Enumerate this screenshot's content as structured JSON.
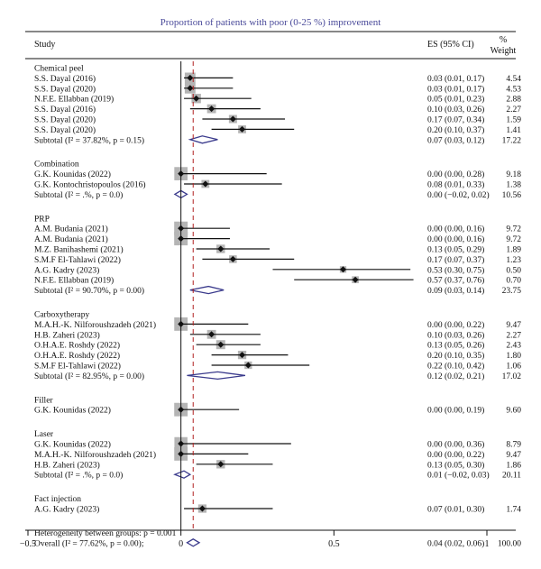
{
  "chart_data": {
    "type": "forest",
    "title": "Proportion of patients with poor (0-25 %) improvement",
    "columns": {
      "study": "Study",
      "es": "ES (95% CI)",
      "weight_line1": "%",
      "weight_line2": "Weight"
    },
    "xlim": [
      -0.5,
      1
    ],
    "xticks": [
      -0.5,
      0,
      0.5,
      1
    ],
    "xtick_labels": [
      "−0.5",
      "0",
      "0.5",
      "1"
    ],
    "reference_line": 0.04,
    "groups": [
      {
        "name": "Chemical peel",
        "studies": [
          {
            "label": "S.S. Dayal (2016)",
            "es": 0.03,
            "lo": 0.01,
            "hi": 0.17,
            "es_text": "0.03 (0.01, 0.17)",
            "weight": "4.54"
          },
          {
            "label": "S.S. Dayal (2020)",
            "es": 0.03,
            "lo": 0.01,
            "hi": 0.17,
            "es_text": "0.03 (0.01, 0.17)",
            "weight": "4.53"
          },
          {
            "label": "N.F.E. Ellabban (2019)",
            "es": 0.05,
            "lo": 0.01,
            "hi": 0.23,
            "es_text": "0.05 (0.01, 0.23)",
            "weight": "2.88"
          },
          {
            "label": "S.S. Dayal (2016)",
            "es": 0.1,
            "lo": 0.03,
            "hi": 0.26,
            "es_text": "0.10 (0.03, 0.26)",
            "weight": "2.27"
          },
          {
            "label": "S.S. Dayal (2020)",
            "es": 0.17,
            "lo": 0.07,
            "hi": 0.34,
            "es_text": "0.17 (0.07, 0.34)",
            "weight": "1.59"
          },
          {
            "label": "S.S. Dayal (2020)",
            "es": 0.2,
            "lo": 0.1,
            "hi": 0.37,
            "es_text": "0.20 (0.10, 0.37)",
            "weight": "1.41"
          }
        ],
        "subtotal": {
          "label": "Subtotal (I² = 37.82%, p = 0.15)",
          "es": 0.07,
          "lo": 0.03,
          "hi": 0.12,
          "es_text": "0.07 (0.03, 0.12)",
          "weight": "17.22"
        }
      },
      {
        "name": "Combination",
        "studies": [
          {
            "label": "G.K. Kounidas (2022)",
            "es": 0.0,
            "lo": 0.0,
            "hi": 0.28,
            "es_text": "0.00 (0.00, 0.28)",
            "weight": "9.18"
          },
          {
            "label": "G.K. Kontochristopoulos (2016)",
            "es": 0.08,
            "lo": 0.01,
            "hi": 0.33,
            "es_text": "0.08 (0.01, 0.33)",
            "weight": "1.38"
          }
        ],
        "subtotal": {
          "label": "Subtotal (I² = .%, p = 0.0)",
          "es": 0.0,
          "lo": -0.02,
          "hi": 0.02,
          "es_text": "0.00 (−0.02, 0.02)",
          "weight": "10.56"
        }
      },
      {
        "name": "PRP",
        "studies": [
          {
            "label": "A.M. Budania (2021)",
            "es": 0.0,
            "lo": 0.0,
            "hi": 0.16,
            "es_text": "0.00 (0.00, 0.16)",
            "weight": "9.72"
          },
          {
            "label": "A.M. Budania (2021)",
            "es": 0.0,
            "lo": 0.0,
            "hi": 0.16,
            "es_text": "0.00 (0.00, 0.16)",
            "weight": "9.72"
          },
          {
            "label": "M.Z. Banihashemi (2021)",
            "es": 0.13,
            "lo": 0.05,
            "hi": 0.29,
            "es_text": "0.13 (0.05, 0.29)",
            "weight": "1.89"
          },
          {
            "label": "S.M.F El-Tahlawi (2022)",
            "es": 0.17,
            "lo": 0.07,
            "hi": 0.37,
            "es_text": "0.17 (0.07, 0.37)",
            "weight": "1.23"
          },
          {
            "label": "A.G. Kadry (2023)",
            "es": 0.53,
            "lo": 0.3,
            "hi": 0.75,
            "es_text": "0.53 (0.30, 0.75)",
            "weight": "0.50"
          },
          {
            "label": "N.F.E. Ellabban (2019)",
            "es": 0.57,
            "lo": 0.37,
            "hi": 0.76,
            "es_text": "0.57 (0.37, 0.76)",
            "weight": "0.70"
          }
        ],
        "subtotal": {
          "label": "Subtotal (I² = 90.70%, p = 0.00)",
          "es": 0.09,
          "lo": 0.03,
          "hi": 0.14,
          "es_text": "0.09 (0.03, 0.14)",
          "weight": "23.75"
        }
      },
      {
        "name": "Carboxytherapy",
        "studies": [
          {
            "label": "M.A.H.-K. Nilforoushzadeh (2021)",
            "es": 0.0,
            "lo": 0.0,
            "hi": 0.22,
            "es_text": "0.00 (0.00, 0.22)",
            "weight": "9.47"
          },
          {
            "label": "H.B. Zaheri (2023)",
            "es": 0.1,
            "lo": 0.03,
            "hi": 0.26,
            "es_text": "0.10 (0.03, 0.26)",
            "weight": "2.27"
          },
          {
            "label": "O.H.A.E. Roshdy (2022)",
            "es": 0.13,
            "lo": 0.05,
            "hi": 0.26,
            "es_text": "0.13 (0.05, 0.26)",
            "weight": "2.43"
          },
          {
            "label": "O.H.A.E. Roshdy (2022)",
            "es": 0.2,
            "lo": 0.1,
            "hi": 0.35,
            "es_text": "0.20 (0.10, 0.35)",
            "weight": "1.80"
          },
          {
            "label": "S.M.F El-Tahlawi (2022)",
            "es": 0.22,
            "lo": 0.1,
            "hi": 0.42,
            "es_text": "0.22 (0.10, 0.42)",
            "weight": "1.06"
          }
        ],
        "subtotal": {
          "label": "Subtotal (I² = 82.95%, p = 0.00)",
          "es": 0.12,
          "lo": 0.02,
          "hi": 0.21,
          "es_text": "0.12 (0.02, 0.21)",
          "weight": "17.02"
        }
      },
      {
        "name": "Filler",
        "studies": [
          {
            "label": "G.K. Kounidas (2022)",
            "es": 0.0,
            "lo": 0.0,
            "hi": 0.19,
            "es_text": "0.00 (0.00, 0.19)",
            "weight": "9.60"
          }
        ],
        "subtotal": null
      },
      {
        "name": "Laser",
        "studies": [
          {
            "label": "G.K. Kounidas (2022)",
            "es": 0.0,
            "lo": 0.0,
            "hi": 0.36,
            "es_text": "0.00 (0.00, 0.36)",
            "weight": "8.79"
          },
          {
            "label": "M.A.H.-K. Nilforoushzadeh (2021)",
            "es": 0.0,
            "lo": 0.0,
            "hi": 0.22,
            "es_text": "0.00 (0.00, 0.22)",
            "weight": "9.47"
          },
          {
            "label": "H.B. Zaheri (2023)",
            "es": 0.13,
            "lo": 0.05,
            "hi": 0.3,
            "es_text": "0.13 (0.05, 0.30)",
            "weight": "1.86"
          }
        ],
        "subtotal": {
          "label": "Subtotal (I² = .%, p = 0.0)",
          "es": 0.01,
          "lo": -0.02,
          "hi": 0.03,
          "es_text": "0.01 (−0.02, 0.03)",
          "weight": "20.11"
        }
      },
      {
        "name": "Fact injection",
        "studies": [
          {
            "label": "A.G. Kadry (2023)",
            "es": 0.07,
            "lo": 0.01,
            "hi": 0.3,
            "es_text": "0.07 (0.01, 0.30)",
            "weight": "1.74"
          }
        ],
        "subtotal": null
      }
    ],
    "heterogeneity_text": "Heterogeneity between groups: p = 0.001",
    "overall": {
      "label": "Overall (I² = 77.62%, p = 0.00);",
      "es": 0.04,
      "lo": 0.02,
      "hi": 0.06,
      "es_text": "0.04 (0.02, 0.06)",
      "weight": "100.00"
    },
    "colors": {
      "box": "#b5b5b5",
      "diamond": "#3a3a8c",
      "reference": "#b22222",
      "title": "#4a4a9a",
      "line": "#111111"
    }
  }
}
